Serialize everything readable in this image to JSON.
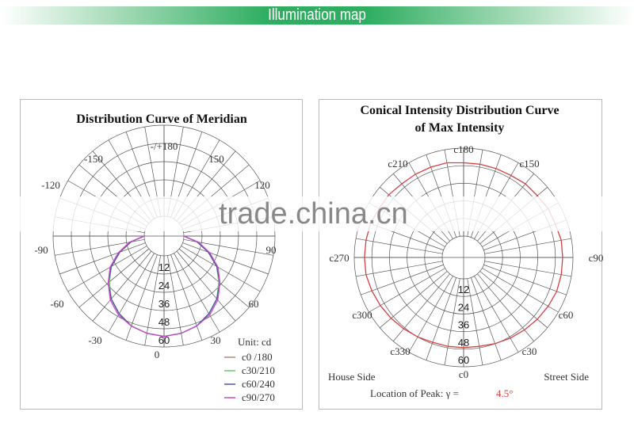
{
  "banner": {
    "title": "Illumination map"
  },
  "watermark": "trade.china.cn",
  "chart_data": [
    {
      "type": "polar-line",
      "title": "Distribution Curve of  Meridian",
      "angle_labels": [
        "-/+180",
        "-150",
        "150",
        "-120",
        "120",
        "-90",
        "90",
        "-60",
        "60",
        "-30",
        "30",
        "0"
      ],
      "radial_ticks": [
        "12",
        "24",
        "36",
        "48",
        "60"
      ],
      "rlim": [
        0,
        60
      ],
      "unit": "Unit: cd",
      "gamma": [
        -90,
        -80,
        -70,
        -60,
        -50,
        -40,
        -30,
        -20,
        -10,
        0,
        10,
        20,
        30,
        40,
        50,
        60,
        70,
        80,
        90
      ],
      "series": [
        {
          "name": "c0 /180",
          "color": "#b48a78",
          "values": [
            0,
            9,
            18,
            27,
            34,
            41,
            46,
            50,
            52,
            53,
            52,
            50,
            46,
            41,
            34,
            27,
            18,
            9,
            0
          ]
        },
        {
          "name": "c30/210",
          "color": "#6cc46c",
          "values": [
            0,
            9,
            18,
            27,
            34,
            41,
            46,
            50,
            52,
            53,
            52,
            50,
            46,
            41,
            34,
            27,
            18,
            9,
            0
          ]
        },
        {
          "name": "c60/240",
          "color": "#4a56a6",
          "values": [
            0,
            9,
            18,
            27,
            35,
            41,
            46,
            50,
            52,
            53,
            52,
            50,
            46,
            41,
            35,
            27,
            18,
            9,
            0
          ]
        },
        {
          "name": "c90/270",
          "color": "#c848c8",
          "values": [
            0,
            10,
            19,
            28,
            35,
            42,
            47,
            50,
            52,
            53,
            52,
            50,
            47,
            42,
            35,
            28,
            19,
            10,
            0
          ]
        }
      ]
    },
    {
      "type": "polar-line",
      "title": "Conical Intensity Distribution Curve",
      "title2": "of  Max Intensity",
      "angle_labels": [
        "c0",
        "c30",
        "c60",
        "c90",
        "c150",
        "c180",
        "c210",
        "c270",
        "c300",
        "c330"
      ],
      "radial_ticks": [
        "12",
        "24",
        "36",
        "48",
        "60"
      ],
      "rlim": [
        0,
        60
      ],
      "c_angles": [
        0,
        10,
        20,
        30,
        40,
        50,
        60,
        70,
        80,
        90,
        100,
        110,
        120,
        130,
        140,
        150,
        160,
        170,
        180,
        190,
        200,
        210,
        220,
        230,
        240,
        250,
        260,
        270,
        280,
        290,
        300,
        310,
        320,
        330,
        340,
        350
      ],
      "series": [
        {
          "color": "#d84040",
          "values": [
            47,
            47,
            48,
            49,
            50,
            51,
            52,
            53,
            53,
            53,
            53,
            52,
            52,
            51,
            51,
            50,
            50,
            50,
            50,
            51,
            51,
            51,
            51,
            52,
            52,
            53,
            53,
            53,
            53,
            52,
            51,
            50,
            49,
            48,
            47,
            47
          ]
        }
      ],
      "house_side": "House Side",
      "street_side": "Street Side",
      "peak_label": "Location of Peak:  γ  =",
      "peak_value": "4.5°",
      "peak_color": "#d84040"
    }
  ]
}
